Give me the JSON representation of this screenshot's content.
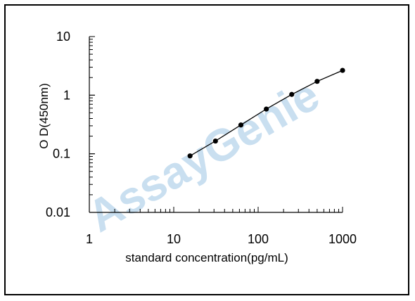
{
  "chart_data": {
    "type": "line",
    "xscale": "log",
    "yscale": "log",
    "xlim": [
      1,
      1000
    ],
    "ylim": [
      0.01,
      10
    ],
    "xlabel": "standard concentration(pg/mL)",
    "ylabel": "O D(450nm)",
    "x_ticks": [
      "1",
      "10",
      "100",
      "1000"
    ],
    "y_ticks": [
      "10",
      "1",
      "0.1",
      "0.01"
    ],
    "grid": false,
    "series": [
      {
        "x": [
          15.6,
          31.2,
          62.5,
          125,
          250,
          500,
          1000
        ],
        "y": [
          0.092,
          0.165,
          0.31,
          0.58,
          1.03,
          1.72,
          2.65
        ]
      }
    ],
    "watermark": "AssayGenie",
    "colors": {
      "line": "#000000",
      "marker": "#000000",
      "watermark": "#c9dff0"
    }
  }
}
